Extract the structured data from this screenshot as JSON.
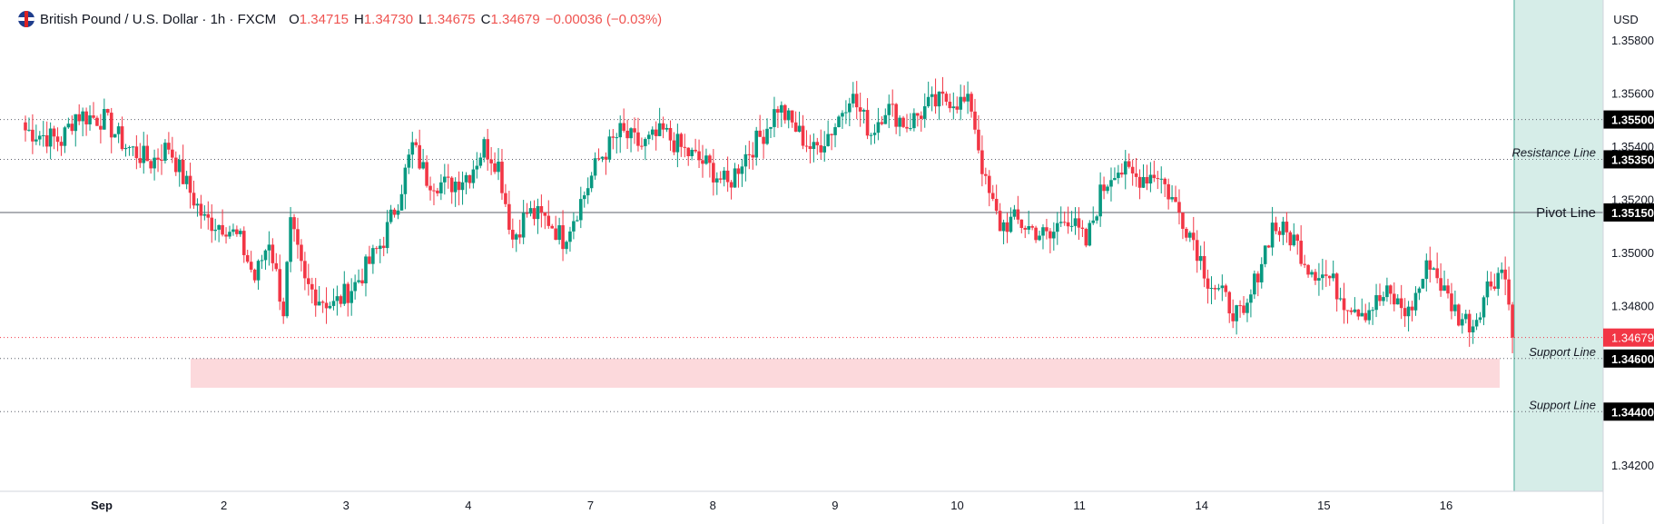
{
  "legend": {
    "title": "British Pound / U.S. Dollar · 1h · FXCM",
    "open_label": "O",
    "open": "1.34715",
    "high_label": "H",
    "high": "1.34730",
    "low_label": "L",
    "low": "1.34675",
    "close_label": "C",
    "close": "1.34679",
    "change": "−0.00036 (−0.03%)"
  },
  "currency_button": "USD",
  "colors": {
    "up": "#089981",
    "down": "#f23645",
    "future_zone": "#d6ede8",
    "support_zone": "#fcd9dc",
    "line_label_bg": "#000000",
    "price_tag_bg": "#f23645"
  },
  "chart_data": {
    "type": "candlestick",
    "symbol": "GBPUSD",
    "interval": "1h",
    "ylim": [
      1.341,
      1.3595
    ],
    "y_ticks": [
      "1.35800",
      "1.35600",
      "1.35400",
      "1.35200",
      "1.35000",
      "1.34800",
      "1.34200"
    ],
    "x_ticks": [
      "Sep",
      "2",
      "3",
      "4",
      "7",
      "8",
      "9",
      "10",
      "11",
      "14",
      "15",
      "16"
    ],
    "current_price": "1.34679",
    "horizontal_lines": [
      {
        "name": "",
        "value": 1.355,
        "label": "1.35500",
        "style": "dotted"
      },
      {
        "name": "Resistance Line",
        "value": 1.3535,
        "label": "1.35350",
        "style": "dotted"
      },
      {
        "name": "Pivot Line",
        "value": 1.3515,
        "label": "1.35150",
        "style": "solid"
      },
      {
        "name": "Support Line",
        "value": 1.346,
        "label": "1.34600",
        "style": "dotted"
      },
      {
        "name": "Support Line",
        "value": 1.344,
        "label": "1.34400",
        "style": "dotted"
      }
    ],
    "support_zone": [
      1.3449,
      1.346
    ],
    "trend": [
      [
        0,
        1.3546
      ],
      [
        10,
        1.3542
      ],
      [
        14,
        1.3552
      ],
      [
        22,
        1.355
      ],
      [
        28,
        1.354
      ],
      [
        35,
        1.3534
      ],
      [
        40,
        1.354
      ],
      [
        44,
        1.3528
      ],
      [
        50,
        1.3512
      ],
      [
        56,
        1.351
      ],
      [
        60,
        1.3504
      ],
      [
        64,
        1.349
      ],
      [
        68,
        1.3505
      ],
      [
        72,
        1.3478
      ],
      [
        74,
        1.351
      ],
      [
        78,
        1.3488
      ],
      [
        82,
        1.3483
      ],
      [
        86,
        1.348
      ],
      [
        92,
        1.3488
      ],
      [
        96,
        1.3496
      ],
      [
        100,
        1.3505
      ],
      [
        104,
        1.352
      ],
      [
        108,
        1.354
      ],
      [
        112,
        1.3528
      ],
      [
        118,
        1.3525
      ],
      [
        124,
        1.353
      ],
      [
        128,
        1.354
      ],
      [
        132,
        1.3533
      ],
      [
        136,
        1.3505
      ],
      [
        140,
        1.3515
      ],
      [
        146,
        1.3512
      ],
      [
        150,
        1.3505
      ],
      [
        156,
        1.3522
      ],
      [
        160,
        1.3535
      ],
      [
        166,
        1.3545
      ],
      [
        172,
        1.354
      ],
      [
        178,
        1.3545
      ],
      [
        184,
        1.3538
      ],
      [
        190,
        1.3533
      ],
      [
        196,
        1.3525
      ],
      [
        200,
        1.3535
      ],
      [
        206,
        1.3545
      ],
      [
        210,
        1.3555
      ],
      [
        214,
        1.3548
      ],
      [
        220,
        1.3538
      ],
      [
        226,
        1.3548
      ],
      [
        230,
        1.356
      ],
      [
        236,
        1.3545
      ],
      [
        240,
        1.3555
      ],
      [
        246,
        1.3548
      ],
      [
        252,
        1.3555
      ],
      [
        258,
        1.3558
      ],
      [
        264,
        1.3555
      ],
      [
        268,
        1.3525
      ],
      [
        272,
        1.351
      ],
      [
        276,
        1.3512
      ],
      [
        282,
        1.3508
      ],
      [
        286,
        1.3505
      ],
      [
        290,
        1.3515
      ],
      [
        296,
        1.3503
      ],
      [
        300,
        1.3522
      ],
      [
        304,
        1.3532
      ],
      [
        310,
        1.3528
      ],
      [
        316,
        1.353
      ],
      [
        320,
        1.352
      ],
      [
        326,
        1.3505
      ],
      [
        330,
        1.349
      ],
      [
        336,
        1.348
      ],
      [
        340,
        1.3474
      ],
      [
        344,
        1.3493
      ],
      [
        348,
        1.351
      ],
      [
        354,
        1.3505
      ],
      [
        358,
        1.3495
      ],
      [
        364,
        1.349
      ],
      [
        368,
        1.3482
      ],
      [
        374,
        1.3478
      ],
      [
        380,
        1.3484
      ],
      [
        386,
        1.3477
      ],
      [
        392,
        1.3497
      ],
      [
        396,
        1.3485
      ],
      [
        400,
        1.3476
      ],
      [
        404,
        1.3473
      ],
      [
        408,
        1.3487
      ],
      [
        412,
        1.3494
      ],
      [
        415,
        1.348
      ]
    ]
  }
}
